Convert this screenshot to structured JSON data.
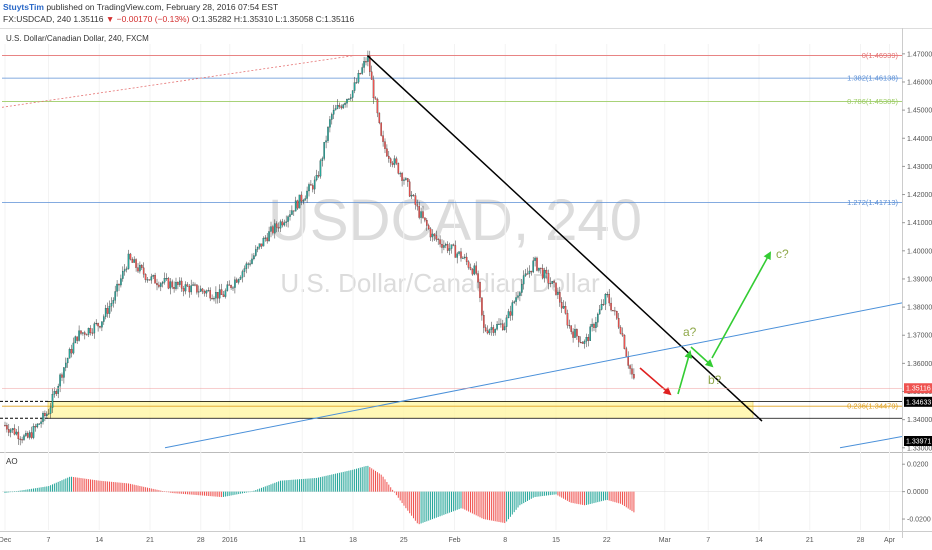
{
  "header": {
    "author": "StuytsTim",
    "published": "published on TradingView.com, February 28, 2016 07:54 EST",
    "symbol": "FX:USDCAD, 240",
    "last": "1.35116",
    "change": "▼ −0.00170 (−0.13%)",
    "ohlc": "O:1.35282 H:1.35310 L:1.35058 C:1.35116"
  },
  "chart_data": {
    "type": "candlestick",
    "title": "U.S. Dollar/Canadian Dollar, 240, FXCM",
    "watermark": "USDCAD, 240",
    "watermark_sub": "U.S. Dollar/Canadian Dollar",
    "x_ticks": [
      "Dec",
      "7",
      "14",
      "21",
      "28",
      "2016",
      "11",
      "18",
      "25",
      "Feb",
      "8",
      "15",
      "22",
      "Mar",
      "7",
      "14",
      "21",
      "28",
      "Apr"
    ],
    "y_ticks": [
      "1.47000",
      "1.46000",
      "1.45000",
      "1.44000",
      "1.43000",
      "1.42000",
      "1.41000",
      "1.40000",
      "1.39000",
      "1.38000",
      "1.37000",
      "1.36000",
      "1.35000",
      "1.34000",
      "1.33000"
    ],
    "ylim": [
      1.3285,
      1.4735
    ],
    "price_path": [
      [
        "Dec",
        1.338
      ],
      [
        "Dec 4",
        1.333
      ],
      [
        "Dec 7",
        1.343
      ],
      [
        "Dec 9",
        1.358
      ],
      [
        "Dec 11",
        1.37
      ],
      [
        "Dec 14",
        1.374
      ],
      [
        "Dec 16",
        1.383
      ],
      [
        "Dec 18",
        1.397
      ],
      [
        "Dec 21",
        1.39
      ],
      [
        "Dec 24",
        1.388
      ],
      [
        "Dec 28",
        1.386
      ],
      [
        "Dec 31",
        1.384
      ],
      [
        "Jan 4",
        1.397
      ],
      [
        "Jan 6",
        1.405
      ],
      [
        "Jan 8",
        1.41
      ],
      [
        "Jan 11",
        1.419
      ],
      [
        "Jan 13",
        1.425
      ],
      [
        "Jan 15",
        1.448
      ],
      [
        "Jan 18",
        1.457
      ],
      [
        "Jan 20",
        1.469
      ],
      [
        "Jan 22",
        1.438
      ],
      [
        "Jan 25",
        1.426
      ],
      [
        "Jan 27",
        1.414
      ],
      [
        "Jan 29",
        1.405
      ],
      [
        "Feb 2",
        1.398
      ],
      [
        "Feb 4",
        1.392
      ],
      [
        "Feb 5",
        1.372
      ],
      [
        "Feb 8",
        1.374
      ],
      [
        "Feb 10",
        1.387
      ],
      [
        "Feb 12",
        1.396
      ],
      [
        "Feb 15",
        1.386
      ],
      [
        "Feb 17",
        1.372
      ],
      [
        "Feb 19",
        1.367
      ],
      [
        "Feb 22",
        1.384
      ],
      [
        "Feb 24",
        1.372
      ],
      [
        "Feb 25",
        1.36
      ],
      [
        "Feb 26",
        1.3512
      ]
    ],
    "last_price": "1.35116",
    "price_tags": [
      "1.34633",
      "1.33971"
    ],
    "fib_levels": [
      {
        "label": "0(1.46939)",
        "value": 1.46939,
        "color": "#e57373"
      },
      {
        "label": "1.382(1.46138)",
        "value": 1.46138,
        "color": "#5b8fd6"
      },
      {
        "label": "0.786(1.45305)",
        "value": 1.45305,
        "color": "#9ccc65"
      },
      {
        "label": "1.272(1.41713)",
        "value": 1.41713,
        "color": "#5b8fd6"
      },
      {
        "label": "0.236(1.34479)",
        "value": 1.34479,
        "color": "#e0a020"
      }
    ],
    "support_zone": [
      1.3405,
      1.3465
    ],
    "annotations": [
      "a?",
      "b?",
      "c?"
    ],
    "ao": {
      "label": "AO",
      "y_ticks": [
        "0.0200",
        "0.0000",
        "-0.0200"
      ],
      "ylim": [
        -0.028,
        0.026
      ],
      "path": [
        [
          "Dec",
          -0.001
        ],
        [
          "Dec 7",
          0.004
        ],
        [
          "Dec 10",
          0.011
        ],
        [
          "Dec 14",
          0.008
        ],
        [
          "Dec 18",
          0.006
        ],
        [
          "Dec 24",
          -0.001
        ],
        [
          "Dec 31",
          -0.004
        ],
        [
          "Jan 4",
          0.0
        ],
        [
          "Jan 8",
          0.008
        ],
        [
          "Jan 13",
          0.01
        ],
        [
          "Jan 18",
          0.016
        ],
        [
          "Jan 20",
          0.019
        ],
        [
          "Jan 22",
          0.012
        ],
        [
          "Jan 25",
          -0.01
        ],
        [
          "Jan 27",
          -0.024
        ],
        [
          "Jan 29",
          -0.02
        ],
        [
          "Feb 2",
          -0.012
        ],
        [
          "Feb 5",
          -0.02
        ],
        [
          "Feb 8",
          -0.023
        ],
        [
          "Feb 10",
          -0.01
        ],
        [
          "Feb 12",
          -0.004
        ],
        [
          "Feb 15",
          -0.002
        ],
        [
          "Feb 17",
          -0.008
        ],
        [
          "Feb 19",
          -0.01
        ],
        [
          "Feb 22",
          -0.006
        ],
        [
          "Feb 24",
          -0.009
        ],
        [
          "Feb 26",
          -0.016
        ]
      ]
    },
    "colors": {
      "up": "#26a69a",
      "down": "#ef5350",
      "trend": "#000000",
      "channel": "#4a90d9",
      "bull_arrow": "#33cc33",
      "bear_arrow": "#e02020",
      "zone": "#fff59d"
    }
  }
}
